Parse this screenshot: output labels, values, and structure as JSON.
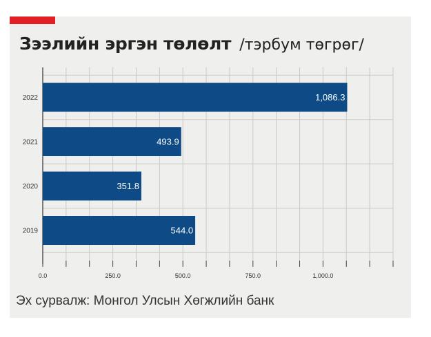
{
  "header": {
    "title": "Зээлийн эргэн төлөлт",
    "unit": "/тэрбум төгрөг/"
  },
  "footer": {
    "source": "Эх сурвалж: Монгол Улсын Хөгжлийн банк"
  },
  "colors": {
    "accent": "#e01f26",
    "bar": "#0d4a86",
    "card_background": "#efefed",
    "grid": "#c8c8c8"
  },
  "chart_data": {
    "type": "bar",
    "orientation": "horizontal",
    "title": "Зээлийн эргэн төлөлт",
    "subtitle": "/тэрбум төгрөг/",
    "categories": [
      "2022",
      "2021",
      "2020",
      "2019"
    ],
    "values": [
      1086.3,
      493.9,
      351.8,
      544.0
    ],
    "value_labels": [
      "1,086.3",
      "493.9",
      "351.8",
      "544.0"
    ],
    "xlim": [
      0,
      1250
    ],
    "x_ticks": [
      0,
      250,
      500,
      750,
      1000
    ],
    "x_tick_labels": [
      "0.0",
      "250.0",
      "500.0",
      "750.0",
      "1,000.0"
    ],
    "x_minor_step": 83.333,
    "grid": true,
    "legend": "none"
  }
}
